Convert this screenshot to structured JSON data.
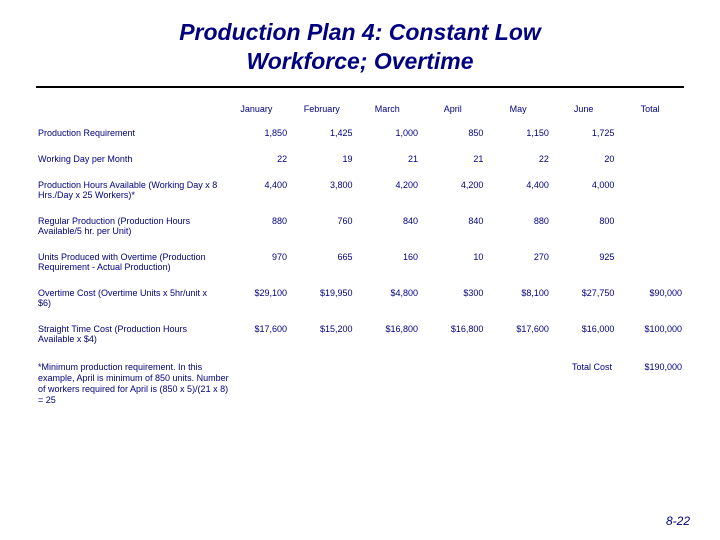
{
  "title_line1": "Production Plan 4:  Constant Low",
  "title_line2": "Workforce; Overtime",
  "columns": [
    "January",
    "February",
    "March",
    "April",
    "May",
    "June",
    "Total"
  ],
  "rows": [
    {
      "label": "Production Requirement",
      "v": [
        "1,850",
        "1,425",
        "1,000",
        "850",
        "1,150",
        "1,725",
        ""
      ]
    },
    {
      "label": "Working Day per Month",
      "v": [
        "22",
        "19",
        "21",
        "21",
        "22",
        "20",
        ""
      ]
    },
    {
      "label": "Production Hours Available (Working Day x 8 Hrs./Day x 25 Workers)*",
      "v": [
        "4,400",
        "3,800",
        "4,200",
        "4,200",
        "4,400",
        "4,000",
        ""
      ]
    },
    {
      "label": "Regular Production (Production Hours Available/5 hr. per Unit)",
      "v": [
        "880",
        "760",
        "840",
        "840",
        "880",
        "800",
        ""
      ]
    },
    {
      "label": "Units Produced with Overtime (Production Requirement - Actual Production)",
      "v": [
        "970",
        "665",
        "160",
        "10",
        "270",
        "925",
        ""
      ]
    },
    {
      "label": "Overtime Cost (Overtime Units x 5hr/unit x $6)",
      "v": [
        "$29,100",
        "$19,950",
        "$4,800",
        "$300",
        "$8,100",
        "$27,750",
        "$90,000"
      ]
    },
    {
      "label": "Straight Time Cost (Production Hours Available x $4)",
      "v": [
        "$17,600",
        "$15,200",
        "$16,800",
        "$16,800",
        "$17,600",
        "$16,000",
        "$100,000"
      ]
    }
  ],
  "footnote": "*Minimum production requirement.  In this example, April is minimum of 850 units.  Number of workers required for April is (850 x 5)/(21 x 8) = 25",
  "total_cost_label": "Total Cost",
  "total_cost_value": "$190,000",
  "page_number": "8-22",
  "colors": {
    "text": "#000080",
    "rule": "#000000",
    "bg": "#ffffff"
  }
}
